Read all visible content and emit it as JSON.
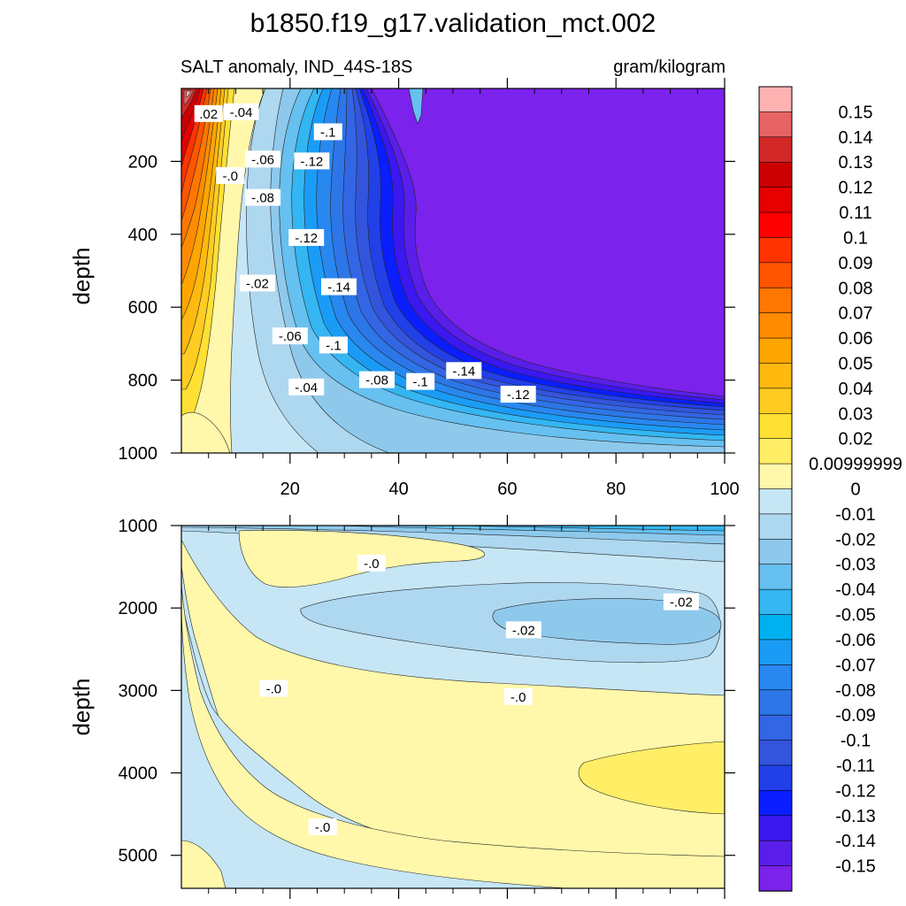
{
  "chart_data": {
    "type": "contour",
    "title": "b1850.f19_g17.validation_mct.002",
    "subtitle_left": "SALT anomaly, IND_44S-18S",
    "subtitle_right": "gram/kilogram",
    "panels": [
      {
        "name": "upper",
        "ylabel": "depth",
        "xlim": [
          0,
          100
        ],
        "ylim": [
          0,
          1000
        ],
        "y_reversed": true,
        "xticks": [
          20,
          40,
          60,
          80,
          100
        ],
        "xtick_labels": [
          "20",
          "40",
          "60",
          "80",
          "100"
        ],
        "yticks": [
          200,
          400,
          600,
          800,
          1000
        ],
        "ytick_labels": [
          "200",
          "400",
          "600",
          "800",
          "1000"
        ],
        "contour_labels": [
          {
            "text": ".02",
            "x": 5,
            "y": 70
          },
          {
            "text": "-.04",
            "x": 11,
            "y": 65
          },
          {
            "text": "-.1",
            "x": 27,
            "y": 120
          },
          {
            "text": "-.06",
            "x": 15,
            "y": 195
          },
          {
            "text": "-.12",
            "x": 24,
            "y": 200
          },
          {
            "text": "-.0",
            "x": 9,
            "y": 240
          },
          {
            "text": "-.08",
            "x": 15,
            "y": 300
          },
          {
            "text": "-.12",
            "x": 23,
            "y": 410
          },
          {
            "text": "-.14",
            "x": 29,
            "y": 545
          },
          {
            "text": "-.02",
            "x": 14,
            "y": 535
          },
          {
            "text": "-.06",
            "x": 20,
            "y": 680
          },
          {
            "text": "-.1",
            "x": 28,
            "y": 705
          },
          {
            "text": "-.14",
            "x": 52,
            "y": 775
          },
          {
            "text": "-.08",
            "x": 36,
            "y": 800
          },
          {
            "text": "-.1",
            "x": 44,
            "y": 805
          },
          {
            "text": "-.04",
            "x": 23,
            "y": 820
          },
          {
            "text": "-.12",
            "x": 62,
            "y": 840
          }
        ]
      },
      {
        "name": "lower",
        "ylabel": "depth",
        "xlim": [
          0,
          100
        ],
        "ylim": [
          1000,
          5400
        ],
        "y_reversed": true,
        "xticks": [
          20,
          40,
          60,
          80,
          100
        ],
        "xtick_labels": [],
        "yticks": [
          1000,
          2000,
          3000,
          4000,
          5000
        ],
        "ytick_labels": [
          "1000",
          "2000",
          "3000",
          "4000",
          "5000"
        ],
        "contour_labels": [
          {
            "text": "-.0",
            "x": 35,
            "y": 1460
          },
          {
            "text": "-.02",
            "x": 92,
            "y": 1930
          },
          {
            "text": "-.02",
            "x": 63,
            "y": 2270
          },
          {
            "text": "-.0",
            "x": 17,
            "y": 2980
          },
          {
            "text": "-.0",
            "x": 62,
            "y": 3080
          },
          {
            "text": "-.0",
            "x": 26,
            "y": 4660
          }
        ]
      }
    ],
    "colorbar": {
      "labels": [
        "0.15",
        "0.14",
        "0.13",
        "0.12",
        "0.11",
        "0.1",
        "0.09",
        "0.08",
        "0.07",
        "0.06",
        "0.05",
        "0.04",
        "0.03",
        "0.02",
        "0.00999999",
        "0",
        "-0.01",
        "-0.02",
        "-0.03",
        "-0.04",
        "-0.05",
        "-0.06",
        "-0.07",
        "-0.08",
        "-0.09",
        "-0.1",
        "-0.11",
        "-0.12",
        "-0.13",
        "-0.14",
        "-0.15"
      ],
      "colors": [
        "#FFB2B2",
        "#E86464",
        "#D32828",
        "#CC0000",
        "#E60000",
        "#FF0000",
        "#FF3300",
        "#FF5500",
        "#FF7700",
        "#FF8C00",
        "#FFA500",
        "#FFB90F",
        "#FFCC22",
        "#FFE033",
        "#FFEE66",
        "#FFF8AA",
        "#C6E6F5",
        "#AED7F0",
        "#8EC9EC",
        "#66C0F0",
        "#33B6F2",
        "#00B0F0",
        "#1A9CF6",
        "#2888F0",
        "#2D76E8",
        "#3366E5",
        "#3355DD",
        "#2240E8",
        "#0A1EFF",
        "#3B17F0",
        "#5A1EEA",
        "#7B22EC"
      ]
    }
  }
}
